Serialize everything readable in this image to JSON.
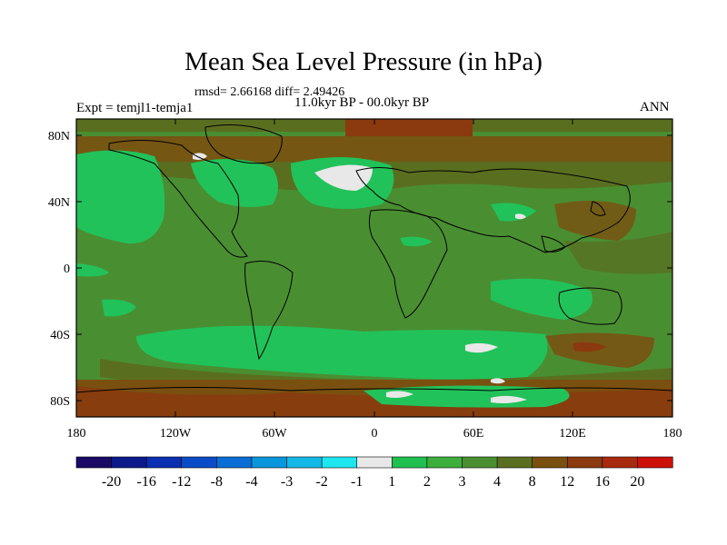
{
  "header": {
    "title": "Mean Sea Level Pressure (in hPa)",
    "stats": "rmsd= 2.66168 diff= 2.49426",
    "period": "11.0kyr BP - 00.0kyr BP",
    "experiment": "Expt = temjl1-temja1",
    "season": "ANN"
  },
  "axes": {
    "lat_ticks": [
      "80N",
      "40N",
      "0",
      "40S",
      "80S"
    ],
    "lon_ticks": [
      "180",
      "120W",
      "60W",
      "0",
      "60E",
      "120E",
      "180"
    ]
  },
  "colorbar": {
    "labels": [
      "-20",
      "-16",
      "-12",
      "-8",
      "-4",
      "-3",
      "-2",
      "-1",
      "1",
      "2",
      "3",
      "4",
      "8",
      "12",
      "16",
      "20"
    ],
    "colors": [
      "#1a0a66",
      "#0c1a8c",
      "#0a2fb0",
      "#0a4cc8",
      "#0a6ed6",
      "#0a96dc",
      "#14b8e6",
      "#1ee6f0",
      "#e8e8e8",
      "#1fc050",
      "#3cae3c",
      "#4a8e32",
      "#5a6e20",
      "#7a5010",
      "#8a3a0e",
      "#a82a0e",
      "#cc1008"
    ]
  },
  "map_colors": {
    "ocean_base": "#4a8e32",
    "green_light": "#22c25a",
    "green_mid": "#3cae3c",
    "olive": "#5a6e20",
    "brown": "#7a5010",
    "rust": "#8a3a0e",
    "white": "#e8e8e8"
  }
}
